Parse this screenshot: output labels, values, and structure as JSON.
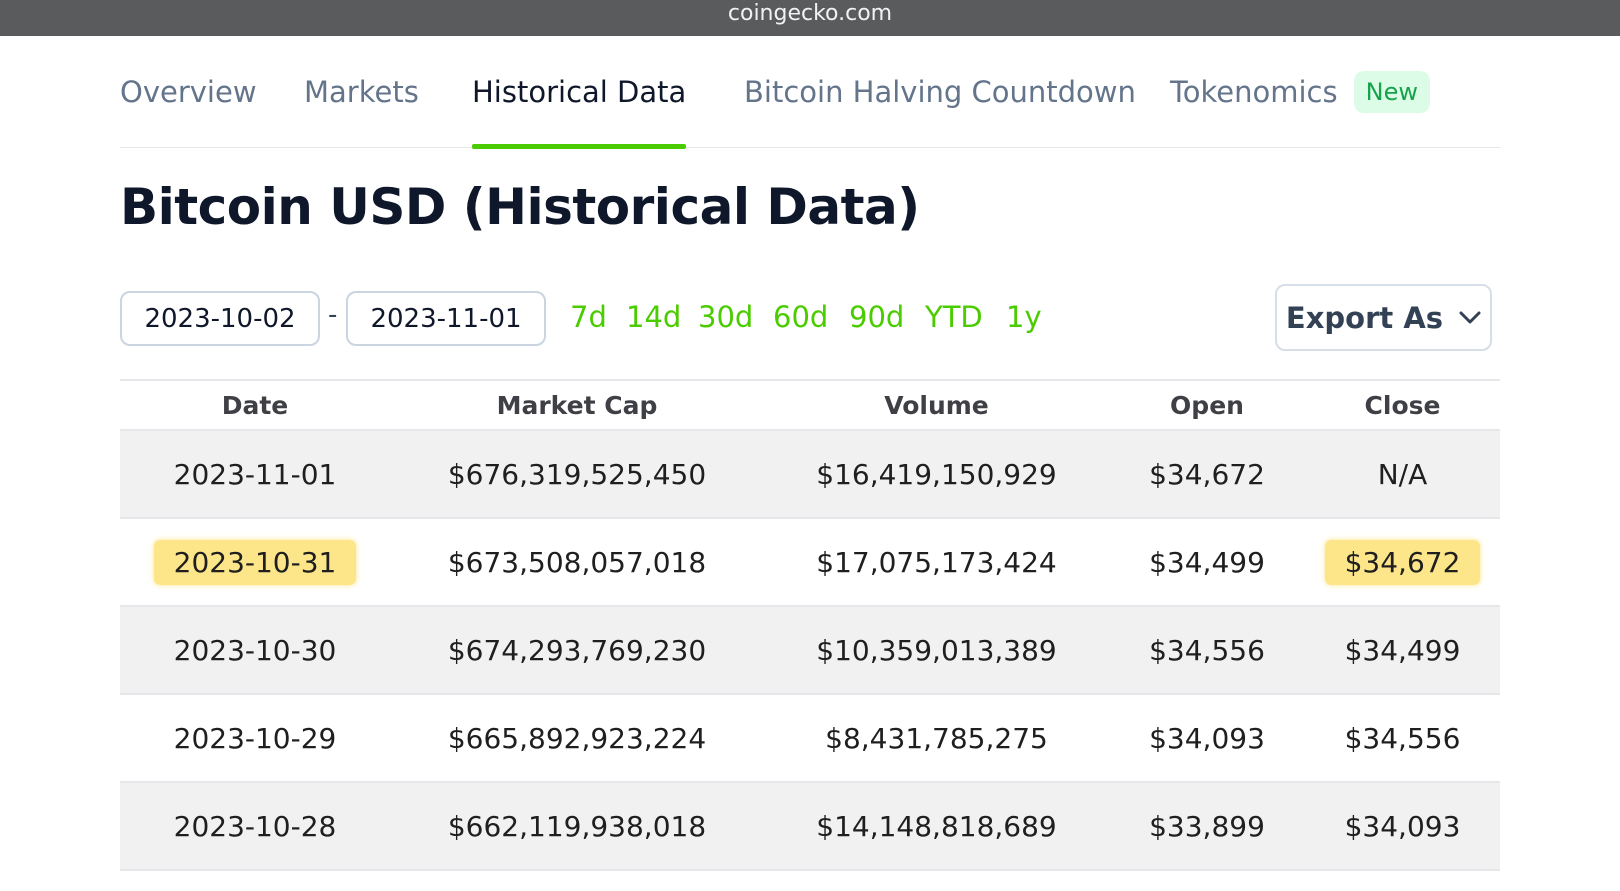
{
  "browser": {
    "url": "coingecko.com"
  },
  "tabs": [
    {
      "label": "Overview"
    },
    {
      "label": "Markets"
    },
    {
      "label": "Historical Data"
    },
    {
      "label": "Bitcoin Halving Countdown"
    },
    {
      "label": "Tokenomics",
      "badge": "New"
    }
  ],
  "active_tab": "Historical Data",
  "page": {
    "title": "Bitcoin USD (Historical Data)"
  },
  "filters": {
    "start_date": "2023-10-02",
    "separator": "-",
    "end_date": "2023-11-01",
    "ranges": [
      "7d",
      "14d",
      "30d",
      "60d",
      "90d",
      "YTD",
      "1y"
    ],
    "export_label": "Export As"
  },
  "colors": {
    "accent": "#4bcc00",
    "highlight": "#fde68a",
    "row_shade": "#f1f1f1"
  },
  "table": {
    "headers": [
      "Date",
      "Market Cap",
      "Volume",
      "Open",
      "Close"
    ],
    "rows": [
      [
        "2023-11-01",
        "$676,319,525,450",
        "$16,419,150,929",
        "$34,672",
        "N/A"
      ],
      [
        "2023-10-31",
        "$673,508,057,018",
        "$17,075,173,424",
        "$34,499",
        "$34,672"
      ],
      [
        "2023-10-30",
        "$674,293,769,230",
        "$10,359,013,389",
        "$34,556",
        "$34,499"
      ],
      [
        "2023-10-29",
        "$665,892,923,224",
        "$8,431,785,275",
        "$34,093",
        "$34,556"
      ],
      [
        "2023-10-28",
        "$662,119,938,018",
        "$14,148,818,689",
        "$33,899",
        "$34,093"
      ]
    ],
    "highlighted_cells": [
      "2023-10-31 Date",
      "2023-10-31 Close"
    ]
  }
}
